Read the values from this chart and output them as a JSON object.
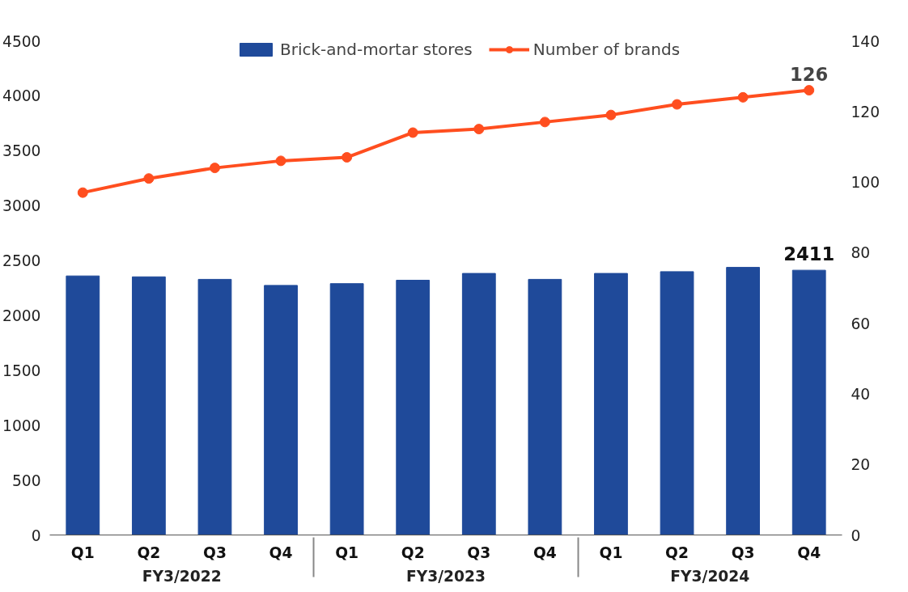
{
  "chart_data": {
    "type": "bar",
    "categories": [
      "Q1",
      "Q2",
      "Q3",
      "Q4",
      "Q1",
      "Q2",
      "Q3",
      "Q4",
      "Q1",
      "Q2",
      "Q3",
      "Q4"
    ],
    "annotations": [
      "FY3/2022",
      "FY3/2023",
      "FY3/2024"
    ],
    "series": [
      {
        "name": "Brick-and-mortar stores",
        "color": "#1f4a9a",
        "values": [
          2359,
          2351,
          2328,
          2273,
          2289,
          2320,
          2382,
          2328,
          2382,
          2398,
          2437,
          2411
        ],
        "value_labels": [
          null,
          null,
          null,
          null,
          null,
          null,
          null,
          null,
          null,
          null,
          null,
          "2411"
        ]
      },
      {
        "name": "Number of brands",
        "type": "line",
        "axis": "y2",
        "color": "#ff4e1f",
        "marker": "circle",
        "values": [
          97,
          101,
          104,
          106,
          107,
          114,
          115,
          117,
          119,
          122,
          124,
          126
        ],
        "value_labels": [
          null,
          null,
          null,
          null,
          null,
          null,
          null,
          null,
          null,
          null,
          null,
          "126"
        ]
      }
    ],
    "ylim": [
      0,
      4500
    ],
    "yticks": [
      0,
      500,
      1000,
      1500,
      2000,
      2500,
      3000,
      3500,
      4000,
      4500
    ],
    "y2lim": [
      0,
      140
    ],
    "y2ticks": [
      0,
      20,
      40,
      60,
      80,
      100,
      120,
      140
    ],
    "grid": false,
    "legend": "top"
  }
}
